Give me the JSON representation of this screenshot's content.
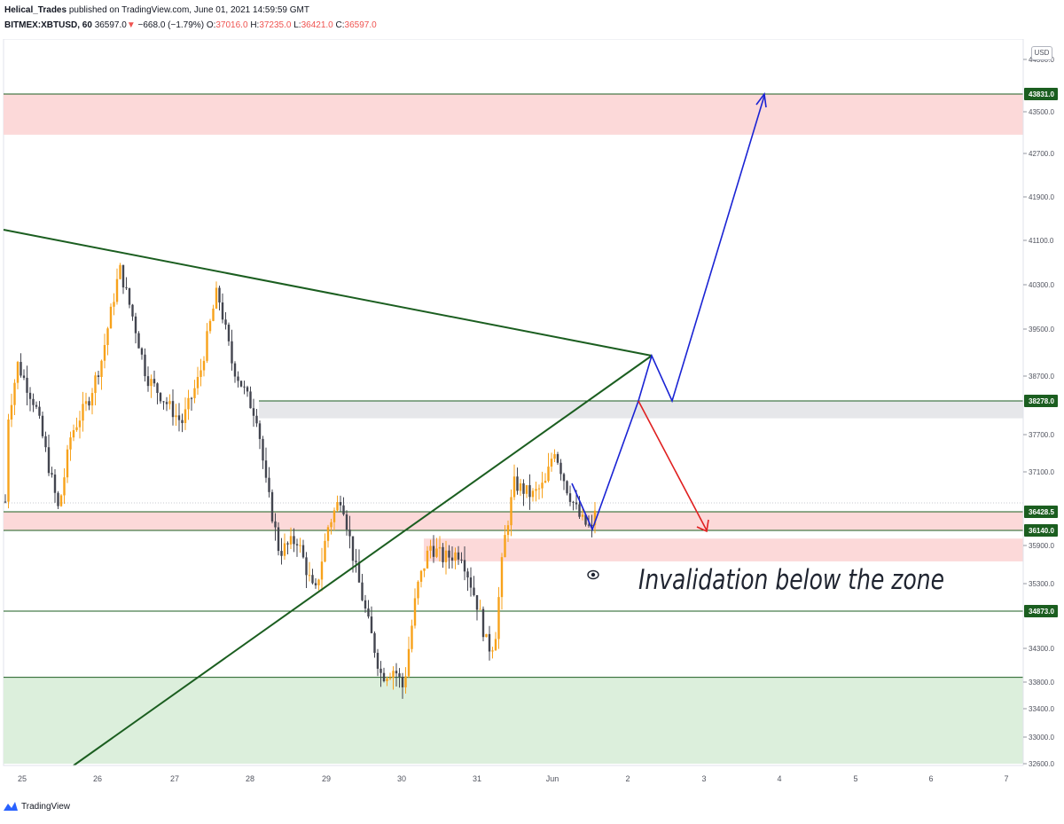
{
  "header": {
    "author": "Helical_Trades",
    "published": "published on TradingView.com, June 01, 2021 14:59:59 GMT",
    "symbol": "BITMEX:XBTUSD, 60",
    "last": "36597.0",
    "change_arrow": "▼",
    "change": "−668.0 (−1.79%)",
    "o_label": "O:",
    "o_value": "37016.0",
    "h_label": "H:",
    "h_value": "37235.0",
    "l_label": "L:",
    "l_value": "36421.0",
    "c_label": "C:",
    "c_value": "36597.0"
  },
  "currency": "USD",
  "footer": {
    "brand": "TradingView"
  },
  "colors": {
    "up": "#f7a21b",
    "down": "#43454f",
    "green_line": "#1b5e20",
    "blue_arrow": "#1a23d4",
    "red_arrow": "#e02020",
    "resistance_zone": "#fcd9d9",
    "support_zone": "#dcefdc",
    "grey_zone": "#e6e7ea"
  },
  "chart_data": {
    "type": "candlestick",
    "symbol": "BITMEX:XBTUSD",
    "timeframe": "60",
    "x_ticks": [
      "25",
      "26",
      "27",
      "28",
      "29",
      "30",
      "31",
      "Jun",
      "2",
      "3",
      "4",
      "5",
      "6",
      "7"
    ],
    "y_ticks": [
      "44300.0",
      "43500.0",
      "42700.0",
      "41900.0",
      "41100.0",
      "40300.0",
      "39500.0",
      "38700.0",
      "37700.0",
      "37100.0",
      "35900.0",
      "35300.0",
      "34300.0",
      "33800.0",
      "33400.0",
      "33000.0",
      "32600.0"
    ],
    "price_labels": [
      "43831.0",
      "38278.0",
      "36428.5",
      "36140.0",
      "34873.0"
    ],
    "zones": [
      {
        "from": 43060,
        "to": 43831,
        "kind": "resistance"
      },
      {
        "from": 37980,
        "to": 38278,
        "kind": "neutral"
      },
      {
        "from": 36140,
        "to": 36428.5,
        "kind": "resistance"
      },
      {
        "from": 35650,
        "to": 36010,
        "kind": "resistance"
      },
      {
        "from": 32600,
        "to": 33870,
        "kind": "support"
      }
    ],
    "annotation": "Invalidation below the zone",
    "last_candle": {
      "open": 37016.0,
      "high": 37235.0,
      "low": 36421.0,
      "close": 36597.0
    }
  }
}
